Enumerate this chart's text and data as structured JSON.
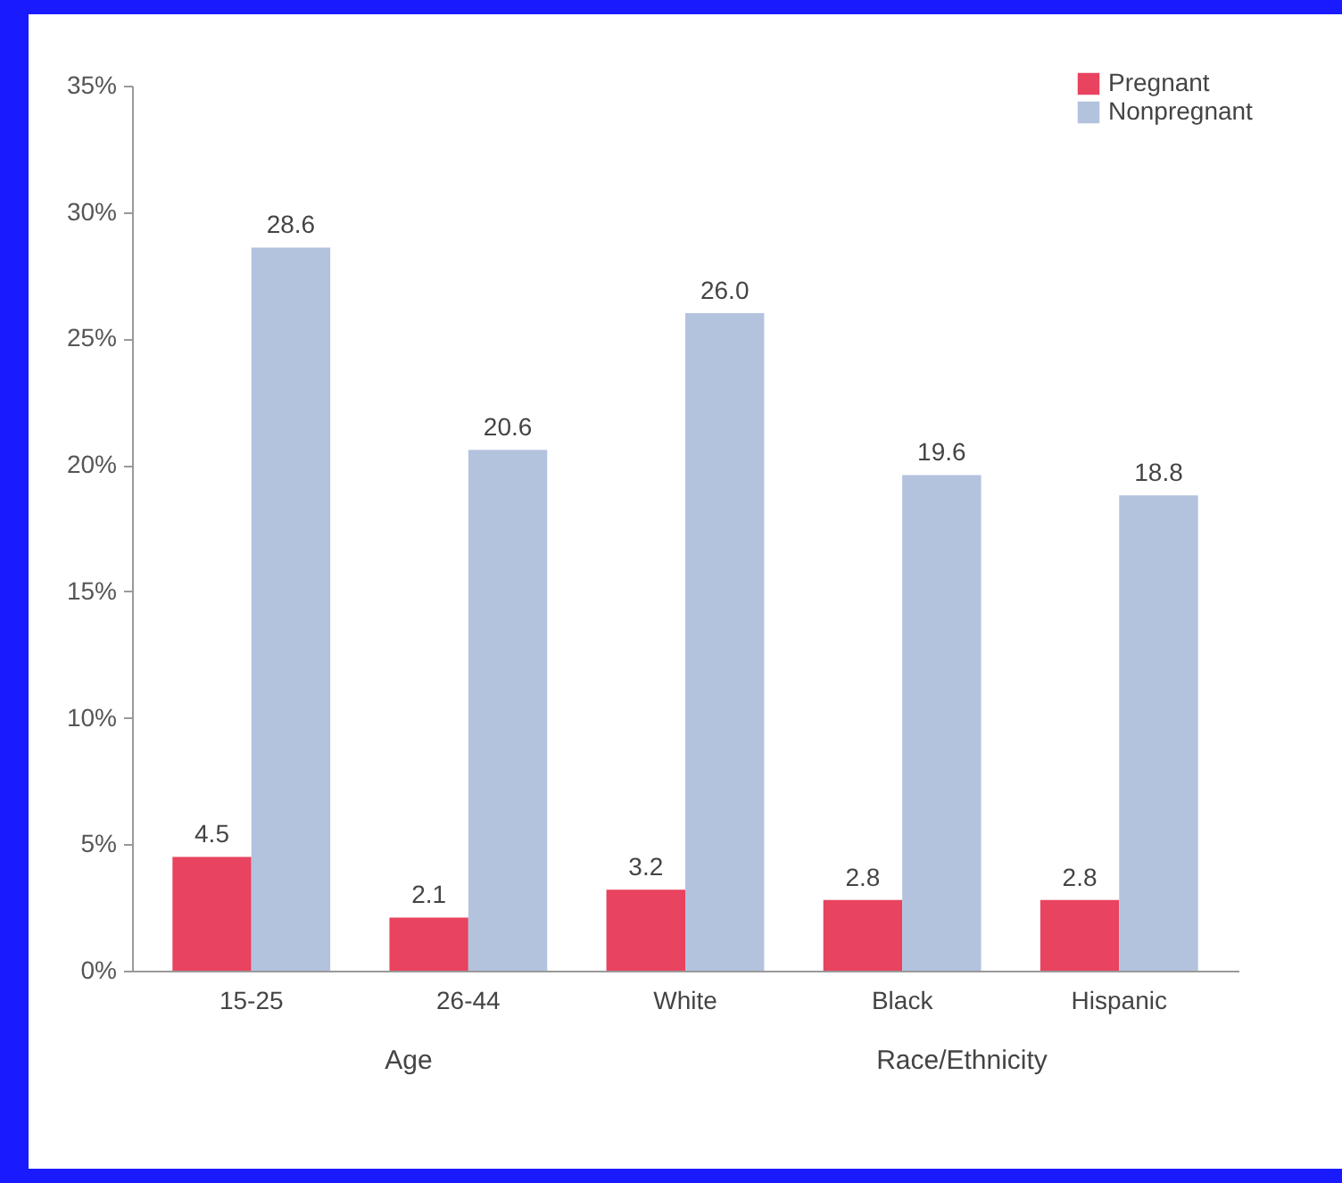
{
  "chart_data": {
    "type": "bar",
    "categories": [
      "15-25",
      "26-44",
      "White",
      "Black",
      "Hispanic"
    ],
    "series": [
      {
        "name": "Pregnant",
        "color": "#e8435f",
        "values": [
          4.5,
          2.1,
          3.2,
          2.8,
          2.8
        ],
        "value_labels": [
          "4.5",
          "2.1",
          "3.2",
          "2.8",
          "2.8"
        ]
      },
      {
        "name": "Nonpregnant",
        "color": "#b3c3de",
        "values": [
          28.6,
          20.6,
          26.0,
          19.6,
          18.8
        ],
        "value_labels": [
          "28.6",
          "20.6",
          "26.0",
          "19.6",
          "18.8"
        ]
      }
    ],
    "ylim": [
      0,
      35
    ],
    "yticks": [
      {
        "value": 0,
        "label": "0%"
      },
      {
        "value": 5,
        "label": "5%"
      },
      {
        "value": 10,
        "label": "10%"
      },
      {
        "value": 15,
        "label": "15%"
      },
      {
        "value": 20,
        "label": "20%"
      },
      {
        "value": 25,
        "label": "25%"
      },
      {
        "value": 30,
        "label": "30%"
      },
      {
        "value": 35,
        "label": "35%"
      }
    ],
    "annotations": [
      "Age",
      "Race/Ethnicity"
    ],
    "grid": false,
    "legend": "top right"
  }
}
